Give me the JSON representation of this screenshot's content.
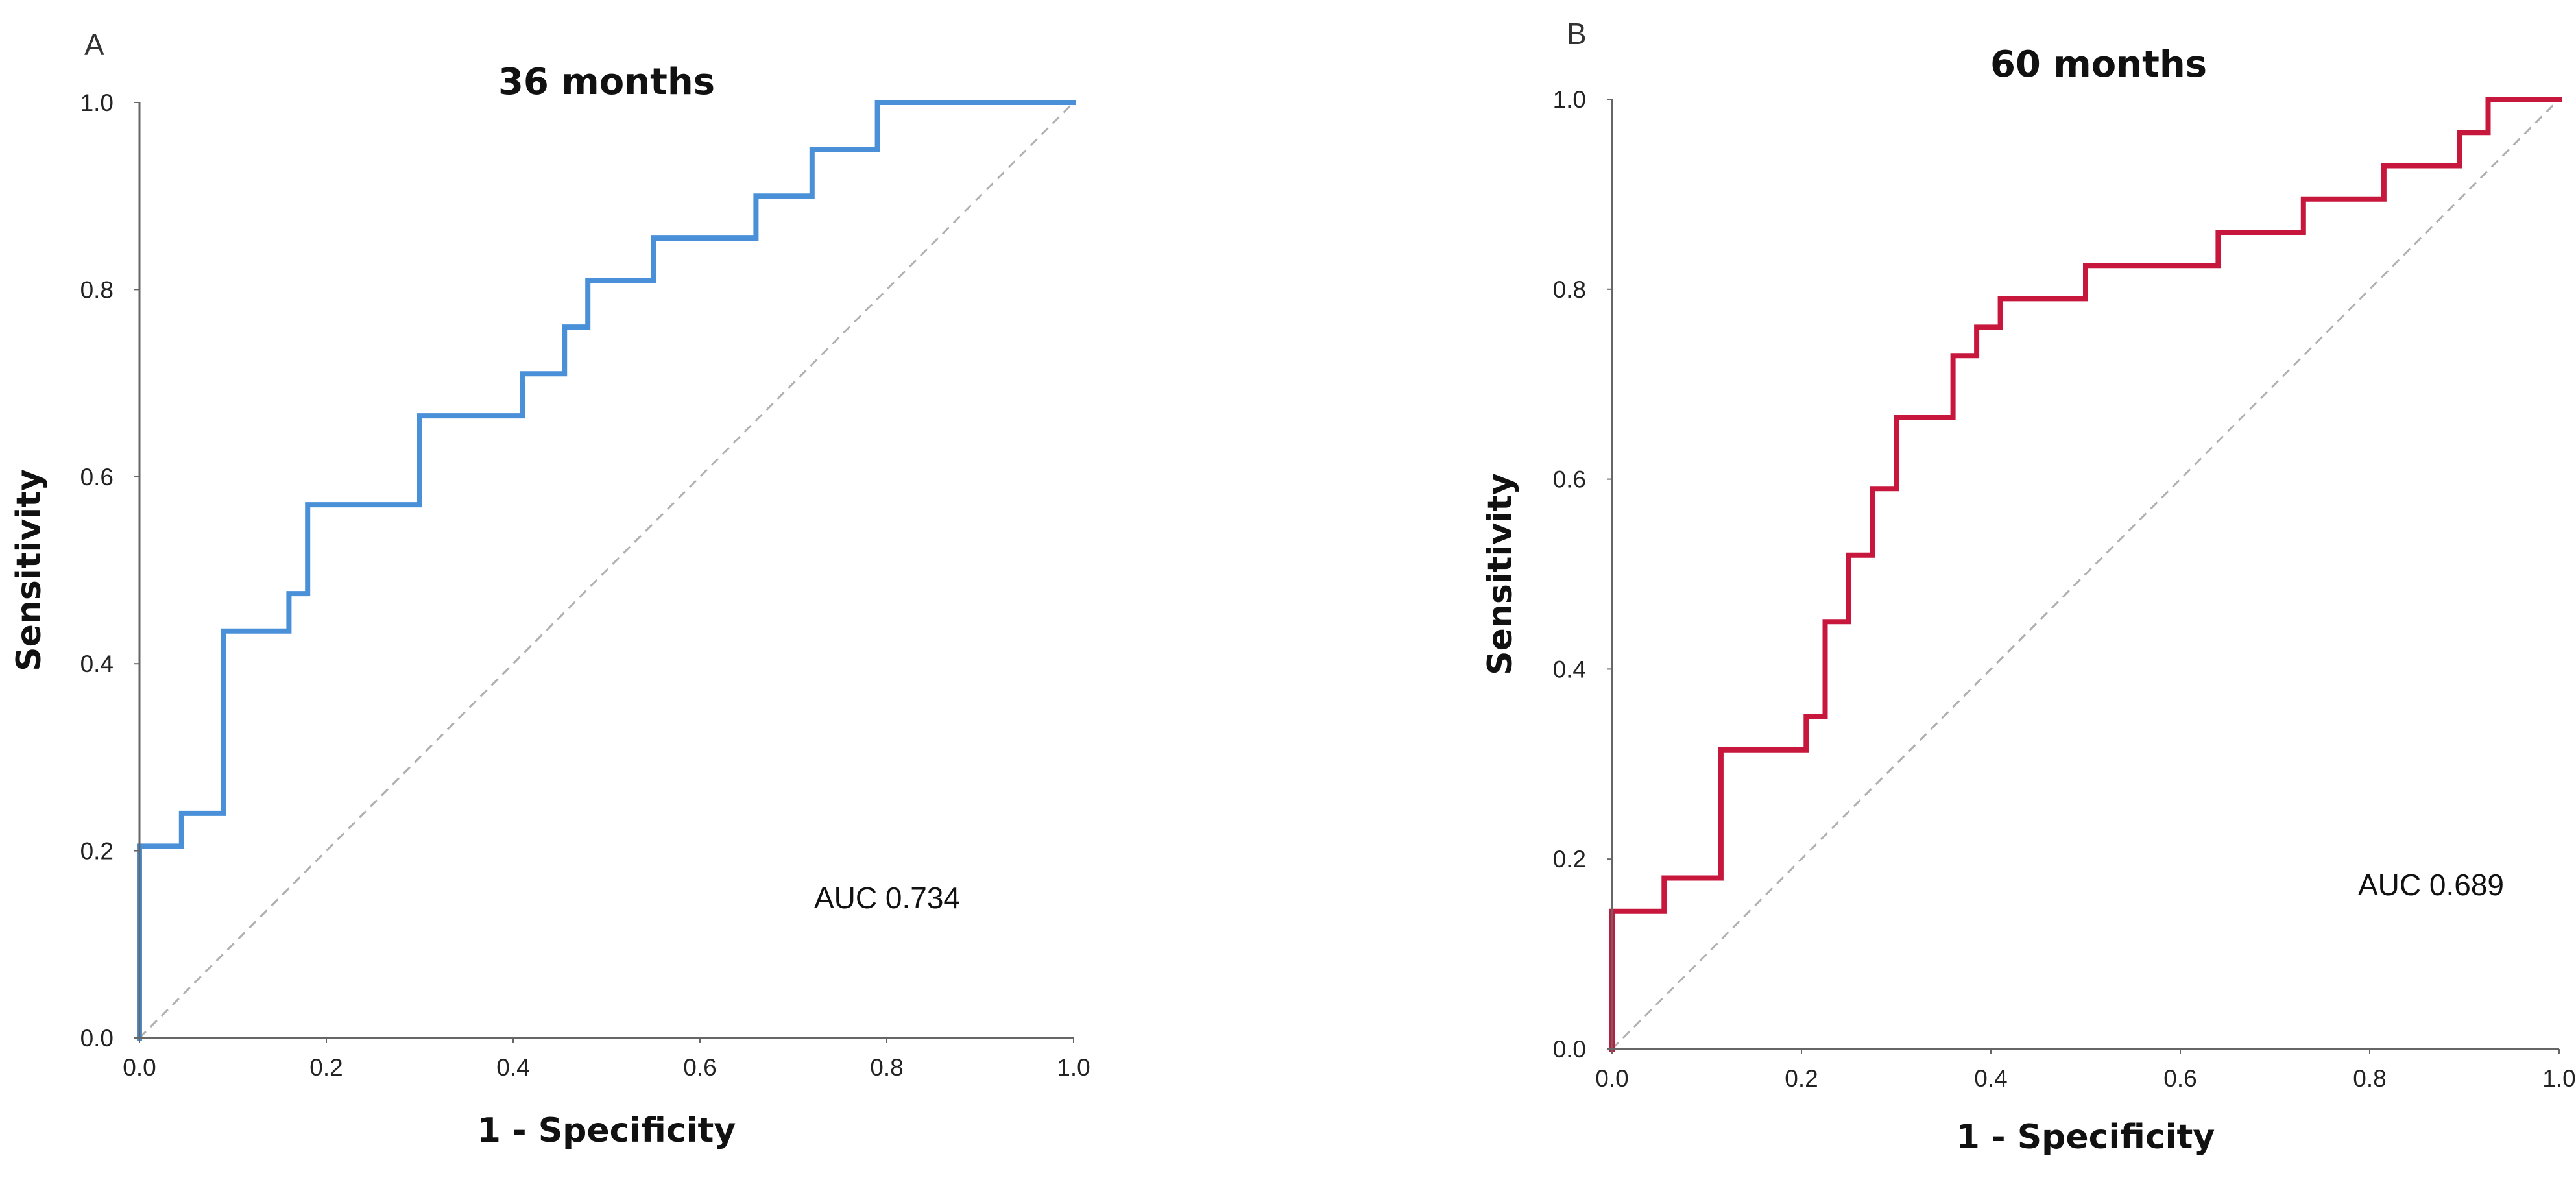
{
  "chart_data": [
    {
      "type": "line",
      "panel_label": "A",
      "title": "36 months",
      "xlabel": "1 - Specificity",
      "ylabel": "Sensitivity",
      "xlim": [
        0,
        1
      ],
      "ylim": [
        0,
        1
      ],
      "x_ticks": [
        0.0,
        0.2,
        0.4,
        0.6,
        0.8,
        1.0
      ],
      "y_ticks": [
        0.0,
        0.2,
        0.4,
        0.6,
        0.8,
        1.0
      ],
      "x_tick_labels": [
        "0.0",
        "0.2",
        "0.4",
        "0.6",
        "0.8",
        "1.0"
      ],
      "y_tick_labels": [
        "0.0",
        "0.2",
        "0.4",
        "0.6",
        "0.8",
        "1.0"
      ],
      "annotation": "AUC 0.734",
      "auc": 0.734,
      "series": [
        {
          "name": "ROC",
          "color": "#4a90d9",
          "x": [
            0.0,
            0.0,
            0.045,
            0.045,
            0.09,
            0.09,
            0.16,
            0.16,
            0.18,
            0.18,
            0.3,
            0.3,
            0.41,
            0.41,
            0.455,
            0.455,
            0.48,
            0.48,
            0.55,
            0.55,
            0.66,
            0.66,
            0.72,
            0.72,
            0.79,
            0.79,
            1.0
          ],
          "y": [
            0.0,
            0.205,
            0.205,
            0.24,
            0.24,
            0.435,
            0.435,
            0.475,
            0.475,
            0.57,
            0.57,
            0.665,
            0.665,
            0.71,
            0.71,
            0.76,
            0.76,
            0.81,
            0.81,
            0.855,
            0.855,
            0.9,
            0.9,
            0.95,
            0.95,
            1.0,
            1.0
          ]
        },
        {
          "name": "Reference line",
          "color": "#b0b0b0",
          "x": [
            0.0,
            1.0
          ],
          "y": [
            0.0,
            1.0
          ]
        }
      ]
    },
    {
      "type": "line",
      "panel_label": "B",
      "title": "60 months",
      "xlabel": "1 - Specificity",
      "ylabel": "Sensitivity",
      "xlim": [
        0,
        1
      ],
      "ylim": [
        0,
        1
      ],
      "x_ticks": [
        0.0,
        0.2,
        0.4,
        0.6,
        0.8,
        1.0
      ],
      "y_ticks": [
        0.0,
        0.2,
        0.4,
        0.6,
        0.8,
        1.0
      ],
      "x_tick_labels": [
        "0.0",
        "0.2",
        "0.4",
        "0.6",
        "0.8",
        "1.0"
      ],
      "y_tick_labels": [
        "0.0",
        "0.2",
        "0.4",
        "0.6",
        "0.8",
        "1.0"
      ],
      "annotation": "AUC 0.689",
      "auc": 0.689,
      "series": [
        {
          "name": "ROC",
          "color": "#c8173d",
          "x": [
            0.0,
            0.0,
            0.055,
            0.055,
            0.115,
            0.115,
            0.205,
            0.205,
            0.225,
            0.225,
            0.25,
            0.25,
            0.275,
            0.275,
            0.3,
            0.3,
            0.36,
            0.36,
            0.385,
            0.385,
            0.41,
            0.41,
            0.5,
            0.5,
            0.64,
            0.64,
            0.73,
            0.73,
            0.815,
            0.815,
            0.895,
            0.895,
            0.925,
            0.925,
            1.0
          ],
          "y": [
            0.0,
            0.145,
            0.145,
            0.18,
            0.18,
            0.315,
            0.315,
            0.35,
            0.35,
            0.45,
            0.45,
            0.52,
            0.52,
            0.59,
            0.59,
            0.665,
            0.665,
            0.73,
            0.73,
            0.76,
            0.76,
            0.79,
            0.79,
            0.825,
            0.825,
            0.86,
            0.86,
            0.895,
            0.895,
            0.93,
            0.93,
            0.965,
            0.965,
            1.0,
            1.0
          ]
        },
        {
          "name": "Reference line",
          "color": "#b0b0b0",
          "x": [
            0.0,
            1.0
          ],
          "y": [
            0.0,
            1.0
          ]
        }
      ]
    }
  ]
}
